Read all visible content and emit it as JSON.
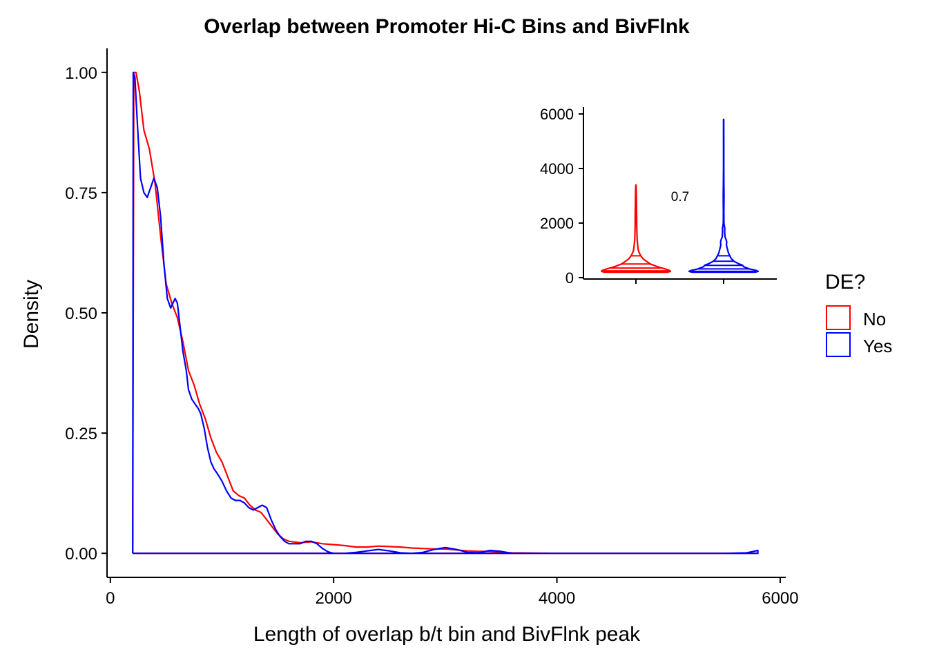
{
  "chart_data": [
    {
      "type": "line",
      "kind": "density",
      "title": "Overlap between Promoter Hi-C Bins and BivFlnk",
      "xlabel": "Length of overlap b/t bin and BivFlnk peak",
      "ylabel": "Density",
      "xlim": [
        -30,
        6050
      ],
      "ylim": [
        -0.05,
        1.05
      ],
      "x_ticks": [
        0,
        2000,
        4000,
        6000
      ],
      "x_tick_labels": [
        "0",
        "2000",
        "4000",
        "6000"
      ],
      "y_ticks": [
        0,
        0.25,
        0.5,
        0.75,
        1
      ],
      "y_tick_labels": [
        "0.00",
        "0.25",
        "0.50",
        "0.75",
        "1.00"
      ],
      "grid": false,
      "legend": {
        "title": "DE?",
        "position": "right",
        "entries": [
          {
            "label": "No",
            "color": "#FF0000"
          },
          {
            "label": "Yes",
            "color": "#0000FF"
          }
        ]
      },
      "series": [
        {
          "name": "No",
          "color": "#FF0000",
          "x": [
            200,
            210,
            230,
            260,
            300,
            350,
            400,
            450,
            500,
            550,
            600,
            650,
            700,
            750,
            800,
            850,
            900,
            950,
            1000,
            1050,
            1100,
            1150,
            1200,
            1250,
            1300,
            1350,
            1400,
            1450,
            1500,
            1550,
            1600,
            1700,
            1800,
            1900,
            2000,
            2100,
            2200,
            2300,
            2400,
            2500,
            2600,
            2700,
            2800,
            2900,
            3000,
            3100,
            3200,
            3300,
            3400,
            3500,
            3600,
            3800,
            4000,
            4500,
            5000,
            5500,
            5800,
            5800
          ],
          "y": [
            0,
            1.0,
            1.0,
            0.96,
            0.88,
            0.84,
            0.77,
            0.66,
            0.56,
            0.52,
            0.49,
            0.44,
            0.38,
            0.35,
            0.31,
            0.28,
            0.24,
            0.21,
            0.19,
            0.16,
            0.13,
            0.12,
            0.115,
            0.1,
            0.09,
            0.085,
            0.07,
            0.055,
            0.04,
            0.03,
            0.025,
            0.022,
            0.024,
            0.02,
            0.018,
            0.016,
            0.013,
            0.013,
            0.015,
            0.014,
            0.013,
            0.011,
            0.01,
            0.009,
            0.009,
            0.007,
            0.005,
            0.004,
            0.004,
            0.002,
            0.001,
            0.0005,
            0,
            0,
            0,
            0,
            0,
            0
          ]
        },
        {
          "name": "Yes",
          "color": "#0000FF",
          "x": [
            200,
            205,
            220,
            240,
            270,
            300,
            330,
            360,
            390,
            420,
            450,
            480,
            510,
            540,
            560,
            580,
            600,
            620,
            650,
            680,
            700,
            730,
            760,
            790,
            810,
            840,
            870,
            900,
            930,
            960,
            1000,
            1040,
            1080,
            1120,
            1160,
            1200,
            1240,
            1280,
            1320,
            1360,
            1400,
            1440,
            1480,
            1520,
            1560,
            1600,
            1650,
            1700,
            1750,
            1800,
            1850,
            1900,
            1950,
            2000,
            2100,
            2200,
            2300,
            2400,
            2500,
            2600,
            2700,
            2800,
            2900,
            3000,
            3100,
            3200,
            3300,
            3400,
            3500,
            3600,
            3800,
            4000,
            4500,
            5000,
            5500,
            5700,
            5760,
            5800,
            5800
          ],
          "y": [
            0,
            1.0,
            0.99,
            0.9,
            0.78,
            0.75,
            0.74,
            0.76,
            0.78,
            0.76,
            0.7,
            0.6,
            0.53,
            0.51,
            0.52,
            0.53,
            0.52,
            0.48,
            0.42,
            0.38,
            0.34,
            0.32,
            0.31,
            0.3,
            0.29,
            0.26,
            0.22,
            0.19,
            0.175,
            0.165,
            0.15,
            0.13,
            0.115,
            0.11,
            0.11,
            0.105,
            0.095,
            0.09,
            0.095,
            0.1,
            0.095,
            0.07,
            0.05,
            0.035,
            0.025,
            0.02,
            0.02,
            0.02,
            0.025,
            0.025,
            0.02,
            0.01,
            0.003,
            0,
            0,
            0.002,
            0.005,
            0.008,
            0.005,
            0.001,
            0,
            0.002,
            0.008,
            0.012,
            0.008,
            0.002,
            0.001,
            0.006,
            0.004,
            0,
            0,
            0,
            0,
            0,
            0,
            0.001,
            0.004,
            0.006,
            0
          ]
        }
      ]
    },
    {
      "type": "violin",
      "inset": true,
      "position": "top-right",
      "annotation": "0.7",
      "ylim": [
        -80,
        6100
      ],
      "y_ticks": [
        0,
        2000,
        4000,
        6000
      ],
      "y_tick_labels": [
        "0",
        "2000",
        "4000",
        "6000"
      ],
      "groups": [
        {
          "name": "No",
          "color": "#FF0000",
          "range": [
            200,
            3400
          ],
          "quantile_lines": [
            250,
            350,
            500,
            800
          ],
          "width_profile": [
            [
              200,
              0.92
            ],
            [
              230,
              1.0
            ],
            [
              260,
              0.98
            ],
            [
              320,
              0.85
            ],
            [
              400,
              0.62
            ],
            [
              500,
              0.42
            ],
            [
              600,
              0.3
            ],
            [
              700,
              0.2
            ],
            [
              800,
              0.14
            ],
            [
              900,
              0.1
            ],
            [
              1000,
              0.07
            ],
            [
              1200,
              0.05
            ],
            [
              1400,
              0.035
            ],
            [
              1600,
              0.03
            ],
            [
              1800,
              0.025
            ],
            [
              2000,
              0.022
            ],
            [
              2400,
              0.02
            ],
            [
              2800,
              0.015
            ],
            [
              3200,
              0.01
            ],
            [
              3400,
              0.003
            ]
          ]
        },
        {
          "name": "Yes",
          "color": "#0000FF",
          "range": [
            200,
            5800
          ],
          "quantile_lines": [
            230,
            320,
            450,
            600,
            800
          ],
          "width_profile": [
            [
              200,
              0.92
            ],
            [
              230,
              1.0
            ],
            [
              260,
              0.95
            ],
            [
              320,
              0.75
            ],
            [
              400,
              0.58
            ],
            [
              450,
              0.55
            ],
            [
              520,
              0.42
            ],
            [
              600,
              0.3
            ],
            [
              700,
              0.22
            ],
            [
              800,
              0.18
            ],
            [
              900,
              0.14
            ],
            [
              1000,
              0.12
            ],
            [
              1100,
              0.1
            ],
            [
              1200,
              0.08
            ],
            [
              1300,
              0.09
            ],
            [
              1400,
              0.07
            ],
            [
              1500,
              0.04
            ],
            [
              1700,
              0.03
            ],
            [
              1800,
              0.035
            ],
            [
              1900,
              0.02
            ],
            [
              2000,
              0.01
            ],
            [
              2400,
              0.008
            ],
            [
              3000,
              0.012
            ],
            [
              3400,
              0.008
            ],
            [
              4000,
              0.005
            ],
            [
              5000,
              0.005
            ],
            [
              5800,
              0.003
            ]
          ]
        }
      ]
    }
  ]
}
